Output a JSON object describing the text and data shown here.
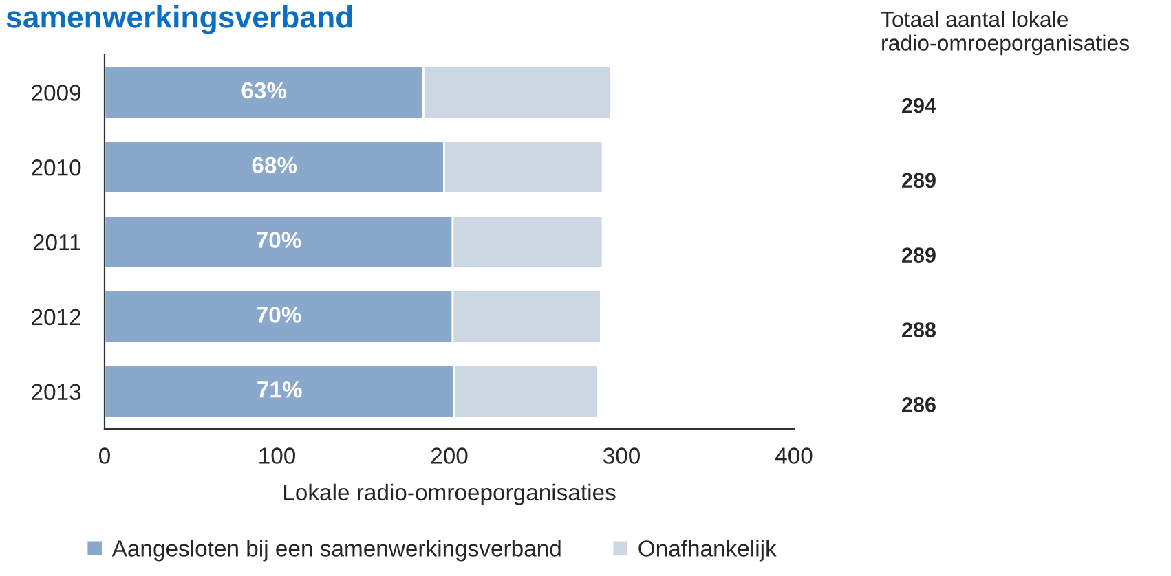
{
  "chart_data": {
    "type": "bar",
    "orientation": "horizontal",
    "stacked": true,
    "title": "samenwerkingsverband",
    "xlabel": "Lokale radio-omroeporganisaties",
    "categories": [
      "2009",
      "2010",
      "2011",
      "2012",
      "2013"
    ],
    "series": [
      {
        "name": "Aangesloten bij een samenwerkingsverband",
        "color": "#8aa7cc",
        "values": [
          185,
          197,
          202,
          202,
          203
        ]
      },
      {
        "name": "Onafhankelijk",
        "color": "#cdd7e3",
        "values": [
          109,
          92,
          87,
          86,
          83
        ]
      }
    ],
    "annotations": [
      {
        "text": "63%",
        "y": "2009"
      },
      {
        "text": "68%",
        "y": "2010"
      },
      {
        "text": "70%",
        "y": "2011"
      },
      {
        "text": "70%",
        "y": "2012"
      },
      {
        "text": "71%",
        "y": "2013"
      },
      "Totaal aantal lokale radio-omroeporganisaties",
      "294",
      "289",
      "289",
      "288",
      "286"
    ],
    "xlim": [
      0,
      400
    ],
    "xticks": [
      0,
      100,
      200,
      300,
      400
    ],
    "grid": false,
    "legend": "bottom left"
  }
}
